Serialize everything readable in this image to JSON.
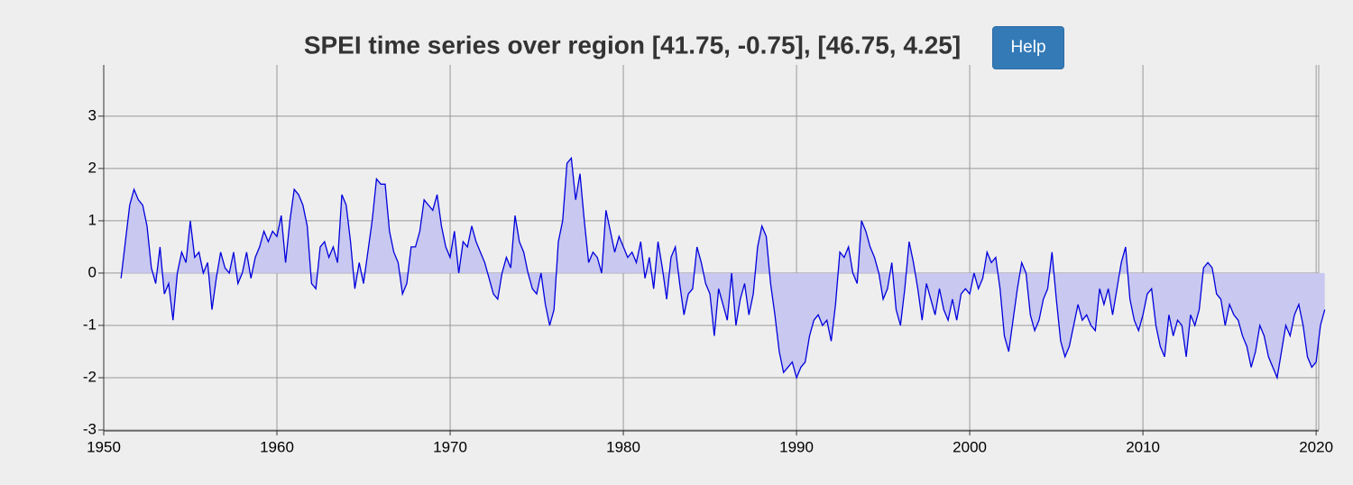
{
  "chart_data": {
    "type": "area",
    "title": "SPEI time series over region [41.75, -0.75], [46.75, 4.25]",
    "x": [
      1951,
      1951.25,
      1951.5,
      1951.75,
      1952,
      1952.25,
      1952.5,
      1952.75,
      1953,
      1953.25,
      1953.5,
      1953.75,
      1954,
      1954.25,
      1954.5,
      1954.75,
      1955,
      1955.25,
      1955.5,
      1955.75,
      1956,
      1956.25,
      1956.5,
      1956.75,
      1957,
      1957.25,
      1957.5,
      1957.75,
      1958,
      1958.25,
      1958.5,
      1958.75,
      1959,
      1959.25,
      1959.5,
      1959.75,
      1960,
      1960.25,
      1960.5,
      1960.75,
      1961,
      1961.25,
      1961.5,
      1961.75,
      1962,
      1962.25,
      1962.5,
      1962.75,
      1963,
      1963.25,
      1963.5,
      1963.75,
      1964,
      1964.25,
      1964.5,
      1964.75,
      1965,
      1965.25,
      1965.5,
      1965.75,
      1966,
      1966.25,
      1966.5,
      1966.75,
      1967,
      1967.25,
      1967.5,
      1967.75,
      1968,
      1968.25,
      1968.5,
      1968.75,
      1969,
      1969.25,
      1969.5,
      1969.75,
      1970,
      1970.25,
      1970.5,
      1970.75,
      1971,
      1971.25,
      1971.5,
      1971.75,
      1972,
      1972.25,
      1972.5,
      1972.75,
      1973,
      1973.25,
      1973.5,
      1973.75,
      1974,
      1974.25,
      1974.5,
      1974.75,
      1975,
      1975.25,
      1975.5,
      1975.75,
      1976,
      1976.25,
      1976.5,
      1976.75,
      1977,
      1977.25,
      1977.5,
      1977.75,
      1978,
      1978.25,
      1978.5,
      1978.75,
      1979,
      1979.25,
      1979.5,
      1979.75,
      1980,
      1980.25,
      1980.5,
      1980.75,
      1981,
      1981.25,
      1981.5,
      1981.75,
      1982,
      1982.25,
      1982.5,
      1982.75,
      1983,
      1983.25,
      1983.5,
      1983.75,
      1984,
      1984.25,
      1984.5,
      1984.75,
      1985,
      1985.25,
      1985.5,
      1985.75,
      1986,
      1986.25,
      1986.5,
      1986.75,
      1987,
      1987.25,
      1987.5,
      1987.75,
      1988,
      1988.25,
      1988.5,
      1988.75,
      1989,
      1989.25,
      1989.5,
      1989.75,
      1990,
      1990.25,
      1990.5,
      1990.75,
      1991,
      1991.25,
      1991.5,
      1991.75,
      1992,
      1992.25,
      1992.5,
      1992.75,
      1993,
      1993.25,
      1993.5,
      1993.75,
      1994,
      1994.25,
      1994.5,
      1994.75,
      1995,
      1995.25,
      1995.5,
      1995.75,
      1996,
      1996.25,
      1996.5,
      1996.75,
      1997,
      1997.25,
      1997.5,
      1997.75,
      1998,
      1998.25,
      1998.5,
      1998.75,
      1999,
      1999.25,
      1999.5,
      1999.75,
      2000,
      2000.25,
      2000.5,
      2000.75,
      2001,
      2001.25,
      2001.5,
      2001.75,
      2002,
      2002.25,
      2002.5,
      2002.75,
      2003,
      2003.25,
      2003.5,
      2003.75,
      2004,
      2004.25,
      2004.5,
      2004.75,
      2005,
      2005.25,
      2005.5,
      2005.75,
      2006,
      2006.25,
      2006.5,
      2006.75,
      2007,
      2007.25,
      2007.5,
      2007.75,
      2008,
      2008.25,
      2008.5,
      2008.75,
      2009,
      2009.25,
      2009.5,
      2009.75,
      2010,
      2010.25,
      2010.5,
      2010.75,
      2011,
      2011.25,
      2011.5,
      2011.75,
      2012,
      2012.25,
      2012.5,
      2012.75,
      2013,
      2013.25,
      2013.5,
      2013.75,
      2014,
      2014.25,
      2014.5,
      2014.75,
      2015,
      2015.25,
      2015.5,
      2015.75,
      2016,
      2016.25,
      2016.5,
      2016.75,
      2017,
      2017.25,
      2017.5,
      2017.75,
      2018,
      2018.25,
      2018.5,
      2018.75,
      2019,
      2019.25,
      2019.5,
      2019.75,
      2020,
      2020.25,
      2020.5
    ],
    "values": [
      -0.1,
      0.6,
      1.3,
      1.6,
      1.4,
      1.3,
      0.9,
      0.1,
      -0.2,
      0.5,
      -0.4,
      -0.2,
      -0.9,
      0.0,
      0.4,
      0.2,
      1.0,
      0.3,
      0.4,
      0.0,
      0.2,
      -0.7,
      -0.1,
      0.4,
      0.1,
      0.0,
      0.4,
      -0.2,
      0.0,
      0.4,
      -0.1,
      0.3,
      0.5,
      0.8,
      0.6,
      0.8,
      0.7,
      1.1,
      0.2,
      1.0,
      1.6,
      1.5,
      1.3,
      0.9,
      -0.2,
      -0.3,
      0.5,
      0.6,
      0.3,
      0.5,
      0.2,
      1.5,
      1.3,
      0.6,
      -0.3,
      0.2,
      -0.2,
      0.4,
      1.0,
      1.8,
      1.7,
      1.7,
      0.8,
      0.4,
      0.2,
      -0.4,
      -0.2,
      0.5,
      0.5,
      0.8,
      1.4,
      1.3,
      1.2,
      1.5,
      0.9,
      0.5,
      0.3,
      0.8,
      0.0,
      0.6,
      0.5,
      0.9,
      0.6,
      0.4,
      0.2,
      -0.1,
      -0.4,
      -0.5,
      0.0,
      0.3,
      0.1,
      1.1,
      0.6,
      0.4,
      0.0,
      -0.3,
      -0.4,
      0.0,
      -0.6,
      -1.0,
      -0.7,
      0.6,
      1.0,
      2.1,
      2.2,
      1.4,
      1.9,
      1.0,
      0.2,
      0.4,
      0.3,
      0.0,
      1.2,
      0.8,
      0.4,
      0.7,
      0.5,
      0.3,
      0.4,
      0.2,
      0.6,
      -0.1,
      0.3,
      -0.3,
      0.6,
      0.1,
      -0.5,
      0.3,
      0.5,
      -0.2,
      -0.8,
      -0.4,
      -0.3,
      0.5,
      0.2,
      -0.2,
      -0.4,
      -1.2,
      -0.3,
      -0.6,
      -0.9,
      0.0,
      -1.0,
      -0.5,
      -0.2,
      -0.8,
      -0.4,
      0.5,
      0.9,
      0.7,
      -0.2,
      -0.8,
      -1.5,
      -1.9,
      -1.8,
      -1.7,
      -2.0,
      -1.8,
      -1.7,
      -1.2,
      -0.9,
      -0.8,
      -1.0,
      -0.9,
      -1.3,
      -0.6,
      0.4,
      0.3,
      0.5,
      0.0,
      -0.2,
      1.0,
      0.8,
      0.5,
      0.3,
      0.0,
      -0.5,
      -0.3,
      0.2,
      -0.7,
      -1.0,
      -0.3,
      0.6,
      0.2,
      -0.3,
      -0.9,
      -0.2,
      -0.5,
      -0.8,
      -0.3,
      -0.7,
      -0.9,
      -0.5,
      -0.9,
      -0.4,
      -0.3,
      -0.4,
      0.0,
      -0.3,
      -0.1,
      0.4,
      0.2,
      0.3,
      -0.3,
      -1.2,
      -1.5,
      -0.9,
      -0.3,
      0.2,
      0.0,
      -0.8,
      -1.1,
      -0.9,
      -0.5,
      -0.3,
      0.4,
      -0.5,
      -1.3,
      -1.6,
      -1.4,
      -1.0,
      -0.6,
      -0.9,
      -0.8,
      -1.0,
      -1.1,
      -0.3,
      -0.6,
      -0.3,
      -0.8,
      -0.3,
      0.2,
      0.5,
      -0.5,
      -0.9,
      -1.1,
      -0.8,
      -0.4,
      -0.3,
      -1.0,
      -1.4,
      -1.6,
      -0.8,
      -1.2,
      -0.9,
      -1.0,
      -1.6,
      -0.8,
      -1.0,
      -0.7,
      0.1,
      0.2,
      0.1,
      -0.4,
      -0.5,
      -1.0,
      -0.6,
      -0.8,
      -0.9,
      -1.2,
      -1.4,
      -1.8,
      -1.5,
      -1.0,
      -1.2,
      -1.6,
      -1.8,
      -2.0,
      -1.5,
      -1.0,
      -1.2,
      -0.8,
      -0.6,
      -1.0,
      -1.6,
      -1.8,
      -1.7,
      -1.0,
      -0.7
    ],
    "color": "#0000dd",
    "fill": "#c8c8f0",
    "xlim": [
      1950,
      2020.15
    ],
    "xticks": [
      1950,
      1960,
      1970,
      1980,
      1990,
      2000,
      2010,
      2020
    ],
    "ylim": [
      -3,
      3.98
    ],
    "yticks": [
      -3,
      -2,
      -1,
      0,
      1,
      2,
      3
    ],
    "grid": true
  },
  "help_button": "Help"
}
